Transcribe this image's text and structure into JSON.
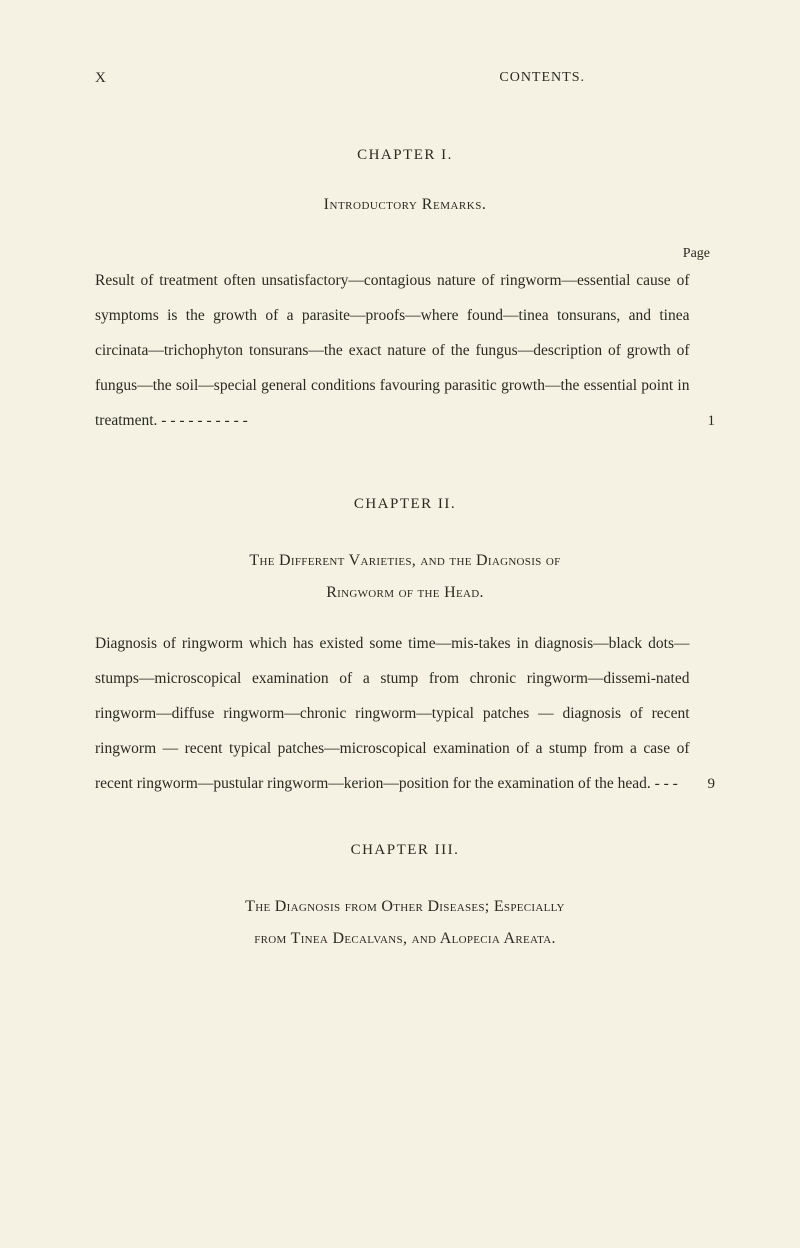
{
  "page": {
    "marker": "X",
    "running_head": "CONTENTS.",
    "background_color": "#f5f2e4",
    "text_color": "#2a2a1f"
  },
  "chapter1": {
    "heading": "CHAPTER I.",
    "title": "Introductory Remarks.",
    "page_label": "Page",
    "body": "Result of treatment often unsatisfactory—contagious nature of ringworm—essential cause of symptoms is the growth of a parasite—proofs—where found—tinea tonsurans, and tinea circinata—trichophyton tonsurans—the exact nature of the fungus—description of growth of fungus—the soil—special general conditions favouring parasitic growth—the essential point in treatment. - - - - - - - - - -",
    "page_number": "1"
  },
  "chapter2": {
    "heading": "CHAPTER II.",
    "title_line1": "The Different Varieties, and the Diagnosis of",
    "title_line2": "Ringworm of the Head.",
    "body": "Diagnosis of ringworm which has existed some time—mis-takes in diagnosis—black dots—stumps—microscopical examination of a stump from chronic ringworm—dissemi-nated ringworm—diffuse ringworm—chronic ringworm—typical patches — diagnosis of recent ringworm — recent typical patches—microscopical examination of a stump from a case of recent ringworm—pustular ringworm—kerion—position for the examination of the head.  -  -  -",
    "page_number": "9"
  },
  "chapter3": {
    "heading": "CHAPTER III.",
    "title_line1": "The Diagnosis from Other Diseases; Especially",
    "title_line2": "from Tinea Decalvans, and Alopecia Areata."
  }
}
